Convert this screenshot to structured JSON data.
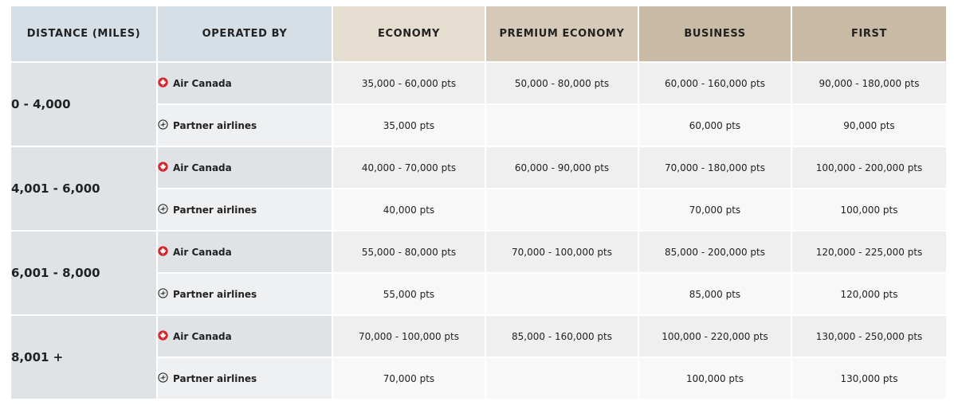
{
  "headers": {
    "distance": "DISTANCE (MILES)",
    "operated_by": "OPERATED BY",
    "economy": "ECONOMY",
    "premium_economy": "PREMIUM ECONOMY",
    "business": "BUSINESS",
    "first": "FIRST"
  },
  "icons": {
    "air_canada": "maple-leaf-icon",
    "partner": "airplane-circle-icon"
  },
  "colors": {
    "air_canada_red": "#d8222a"
  },
  "rows": [
    {
      "distance": "0 - 4,000",
      "air_canada": {
        "label": "Air Canada",
        "economy": "35,000 - 60,000 pts",
        "premium_economy": "50,000 - 80,000 pts",
        "business": "60,000 - 160,000 pts",
        "first": "90,000 - 180,000 pts"
      },
      "partner": {
        "label": "Partner airlines",
        "economy": "35,000 pts",
        "premium_economy": "",
        "business": "60,000 pts",
        "first": "90,000 pts"
      }
    },
    {
      "distance": "4,001 - 6,000",
      "air_canada": {
        "label": "Air Canada",
        "economy": "40,000 - 70,000 pts",
        "premium_economy": "60,000 - 90,000 pts",
        "business": "70,000 - 180,000 pts",
        "first": "100,000 - 200,000 pts"
      },
      "partner": {
        "label": "Partner airlines",
        "economy": "40,000 pts",
        "premium_economy": "",
        "business": "70,000 pts",
        "first": "100,000 pts"
      }
    },
    {
      "distance": "6,001 - 8,000",
      "air_canada": {
        "label": "Air Canada",
        "economy": "55,000 - 80,000 pts",
        "premium_economy": "70,000 - 100,000 pts",
        "business": "85,000 - 200,000 pts",
        "first": "120,000 - 225,000 pts"
      },
      "partner": {
        "label": "Partner airlines",
        "economy": "55,000 pts",
        "premium_economy": "",
        "business": "85,000 pts",
        "first": "120,000 pts"
      }
    },
    {
      "distance": "8,001 +",
      "air_canada": {
        "label": "Air Canada",
        "economy": "70,000 - 100,000 pts",
        "premium_economy": "85,000 - 160,000 pts",
        "business": "100,000 - 220,000 pts",
        "first": "130,000 - 250,000 pts"
      },
      "partner": {
        "label": "Partner airlines",
        "economy": "70,000 pts",
        "premium_economy": "",
        "business": "100,000 pts",
        "first": "130,000 pts"
      }
    }
  ]
}
